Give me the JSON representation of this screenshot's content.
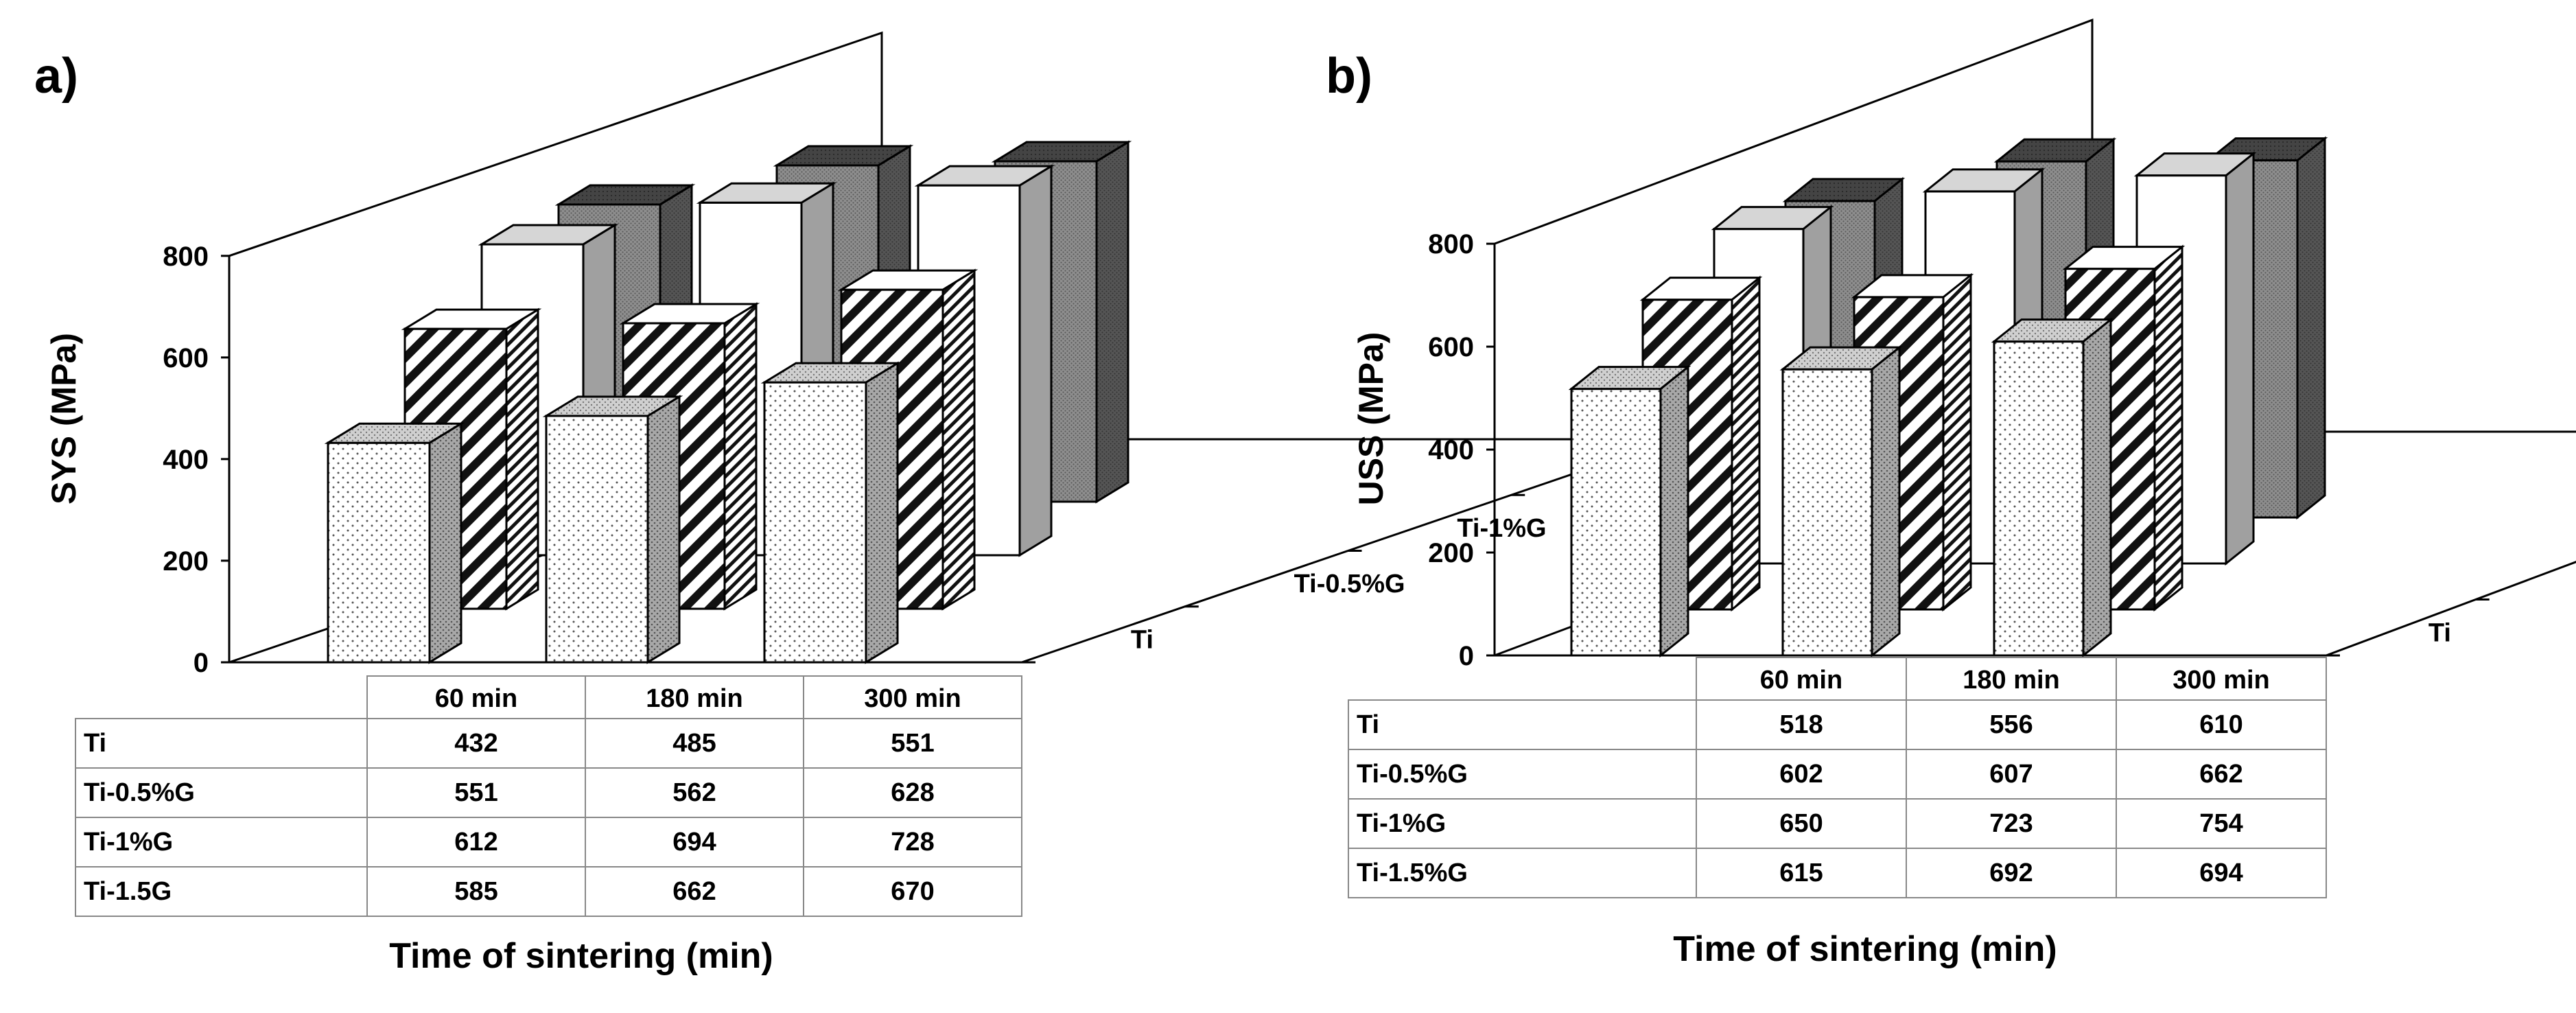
{
  "chart_data": [
    {
      "type": "bar",
      "panel_label": "a)",
      "title": "",
      "ylabel": "SYS (MPa)",
      "xlabel": "Time of sintering (min)",
      "ylim": [
        0,
        800
      ],
      "yticks": [
        "0",
        "200",
        "400",
        "600",
        "800"
      ],
      "categories": [
        "60 min",
        "180 min",
        "300 min"
      ],
      "series": [
        {
          "name": "Ti",
          "values": [
            432,
            485,
            551
          ],
          "pattern": "dots"
        },
        {
          "name": "Ti-0.5%G",
          "values": [
            551,
            562,
            628
          ],
          "pattern": "hatch"
        },
        {
          "name": "Ti-1%G",
          "values": [
            612,
            694,
            728
          ],
          "pattern": "white"
        },
        {
          "name": "Ti-1.5G",
          "values": [
            585,
            662,
            670
          ],
          "pattern": "grey"
        }
      ],
      "table_rows": [
        {
          "label": "Ti",
          "cells": [
            "432",
            "485",
            "551"
          ]
        },
        {
          "label": "Ti-0.5%G",
          "cells": [
            "551",
            "562",
            "628"
          ]
        },
        {
          "label": "Ti-1%G",
          "cells": [
            "612",
            "694",
            "728"
          ]
        },
        {
          "label": "Ti-1.5G",
          "cells": [
            "585",
            "662",
            "670"
          ]
        }
      ]
    },
    {
      "type": "bar",
      "panel_label": "b)",
      "title": "",
      "ylabel": "USS (MPa)",
      "xlabel": "Time of sintering (min)",
      "ylim": [
        0,
        800
      ],
      "yticks": [
        "0",
        "200",
        "400",
        "600",
        "800"
      ],
      "categories": [
        "60 min",
        "180 min",
        "300 min"
      ],
      "series": [
        {
          "name": "Ti",
          "values": [
            518,
            556,
            610
          ],
          "pattern": "dots"
        },
        {
          "name": "Ti-0.5%G",
          "values": [
            602,
            607,
            662
          ],
          "pattern": "hatch"
        },
        {
          "name": "Ti-1%G",
          "values": [
            650,
            723,
            754
          ],
          "pattern": "white"
        },
        {
          "name": "Ti-1.5%G",
          "values": [
            615,
            692,
            694
          ],
          "pattern": "grey"
        }
      ],
      "table_rows": [
        {
          "label": "Ti",
          "cells": [
            "518",
            "556",
            "610"
          ]
        },
        {
          "label": "Ti-0.5%G",
          "cells": [
            "602",
            "607",
            "662"
          ]
        },
        {
          "label": "Ti-1%G",
          "cells": [
            "650",
            "723",
            "754"
          ]
        },
        {
          "label": "Ti-1.5%G",
          "cells": [
            "615",
            "692",
            "694"
          ]
        }
      ]
    }
  ]
}
